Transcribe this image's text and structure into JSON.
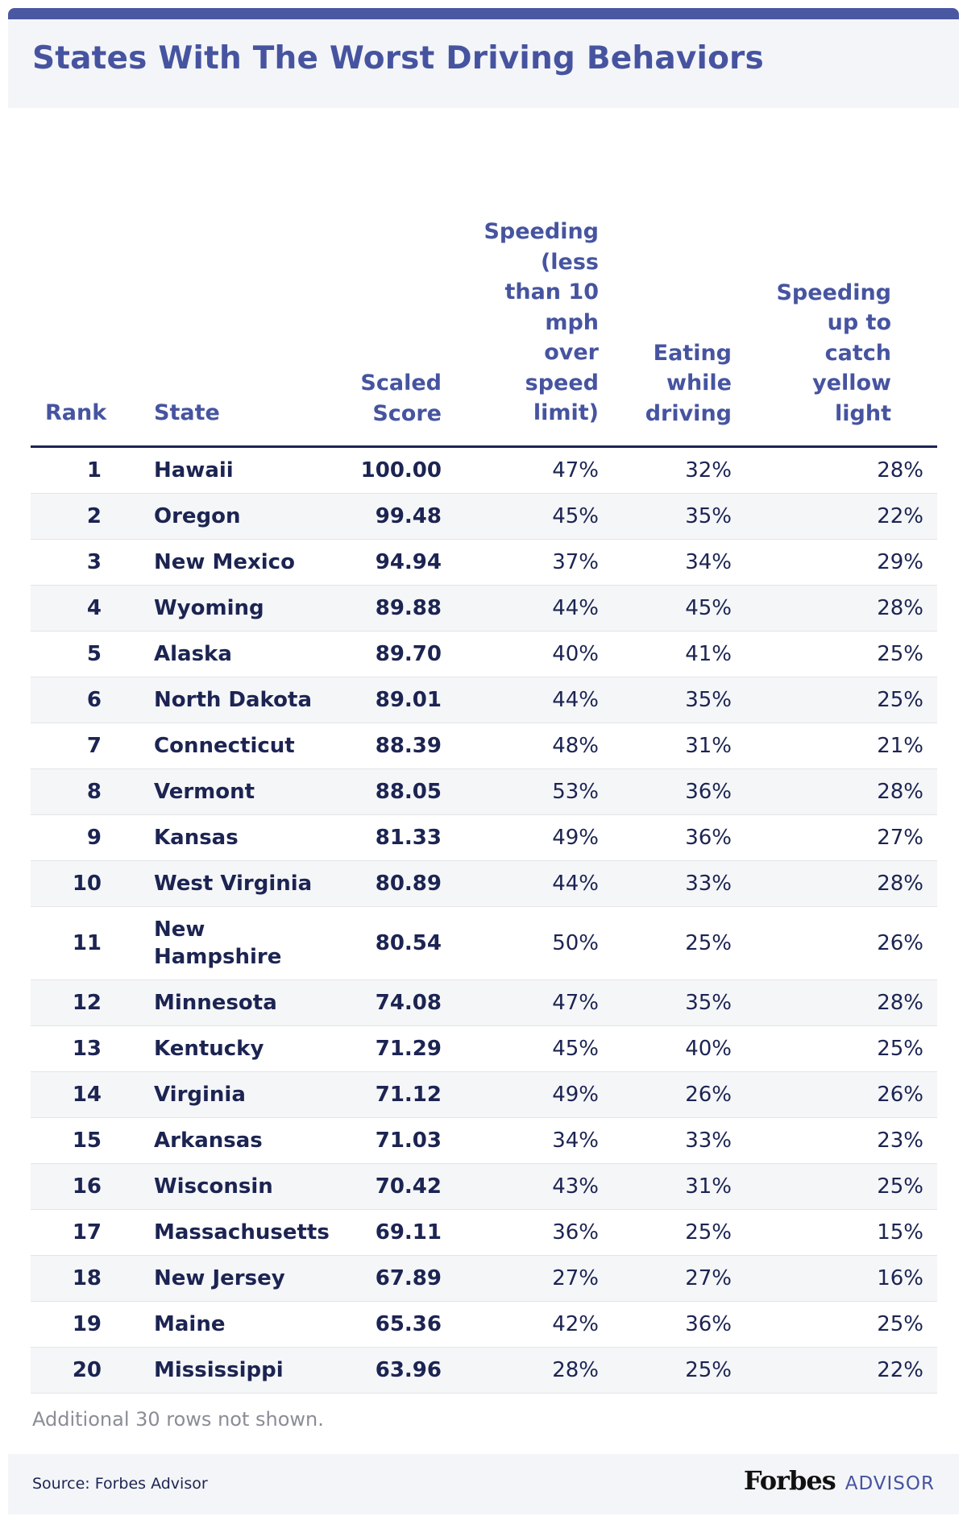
{
  "title": "States With The Worst Driving Behaviors",
  "note": "Additional 30 rows not shown.",
  "source": "Source: Forbes Advisor",
  "brand": {
    "main": "Forbes",
    "sub": "ADVISOR"
  },
  "colors": {
    "accent": "#4654a0",
    "text": "#1c2452",
    "alt_row": "#f5f6f8",
    "header_bg": "#f4f5f8"
  },
  "chart_data": {
    "type": "table",
    "title": "States With The Worst Driving Behaviors",
    "columns": {
      "rank": "Rank",
      "state": "State",
      "score": "Scaled\nScore",
      "speeding": "Speeding\n(less\nthan 10\nmph\nover\nspeed\nlimit)",
      "eating": "Eating\nwhile\ndriving",
      "yellow": "Speeding\nup to\ncatch\nyellow\nlight"
    },
    "rows": [
      {
        "rank": "1",
        "state": "Hawaii",
        "score": "100.00",
        "speeding": "47%",
        "eating": "32%",
        "yellow": "28%"
      },
      {
        "rank": "2",
        "state": "Oregon",
        "score": "99.48",
        "speeding": "45%",
        "eating": "35%",
        "yellow": "22%"
      },
      {
        "rank": "3",
        "state": "New Mexico",
        "score": "94.94",
        "speeding": "37%",
        "eating": "34%",
        "yellow": "29%"
      },
      {
        "rank": "4",
        "state": "Wyoming",
        "score": "89.88",
        "speeding": "44%",
        "eating": "45%",
        "yellow": "28%"
      },
      {
        "rank": "5",
        "state": "Alaska",
        "score": "89.70",
        "speeding": "40%",
        "eating": "41%",
        "yellow": "25%"
      },
      {
        "rank": "6",
        "state": "North Dakota",
        "score": "89.01",
        "speeding": "44%",
        "eating": "35%",
        "yellow": "25%"
      },
      {
        "rank": "7",
        "state": "Connecticut",
        "score": "88.39",
        "speeding": "48%",
        "eating": "31%",
        "yellow": "21%"
      },
      {
        "rank": "8",
        "state": "Vermont",
        "score": "88.05",
        "speeding": "53%",
        "eating": "36%",
        "yellow": "28%"
      },
      {
        "rank": "9",
        "state": "Kansas",
        "score": "81.33",
        "speeding": "49%",
        "eating": "36%",
        "yellow": "27%"
      },
      {
        "rank": "10",
        "state": "West Virginia",
        "score": "80.89",
        "speeding": "44%",
        "eating": "33%",
        "yellow": "28%"
      },
      {
        "rank": "11",
        "state": "New\nHampshire",
        "score": "80.54",
        "speeding": "50%",
        "eating": "25%",
        "yellow": "26%"
      },
      {
        "rank": "12",
        "state": "Minnesota",
        "score": "74.08",
        "speeding": "47%",
        "eating": "35%",
        "yellow": "28%"
      },
      {
        "rank": "13",
        "state": "Kentucky",
        "score": "71.29",
        "speeding": "45%",
        "eating": "40%",
        "yellow": "25%"
      },
      {
        "rank": "14",
        "state": "Virginia",
        "score": "71.12",
        "speeding": "49%",
        "eating": "26%",
        "yellow": "26%"
      },
      {
        "rank": "15",
        "state": "Arkansas",
        "score": "71.03",
        "speeding": "34%",
        "eating": "33%",
        "yellow": "23%"
      },
      {
        "rank": "16",
        "state": "Wisconsin",
        "score": "70.42",
        "speeding": "43%",
        "eating": "31%",
        "yellow": "25%"
      },
      {
        "rank": "17",
        "state": "Massachusetts",
        "score": "69.11",
        "speeding": "36%",
        "eating": "25%",
        "yellow": "15%"
      },
      {
        "rank": "18",
        "state": "New Jersey",
        "score": "67.89",
        "speeding": "27%",
        "eating": "27%",
        "yellow": "16%"
      },
      {
        "rank": "19",
        "state": "Maine",
        "score": "65.36",
        "speeding": "42%",
        "eating": "36%",
        "yellow": "25%"
      },
      {
        "rank": "20",
        "state": "Mississippi",
        "score": "63.96",
        "speeding": "28%",
        "eating": "25%",
        "yellow": "22%"
      }
    ]
  }
}
